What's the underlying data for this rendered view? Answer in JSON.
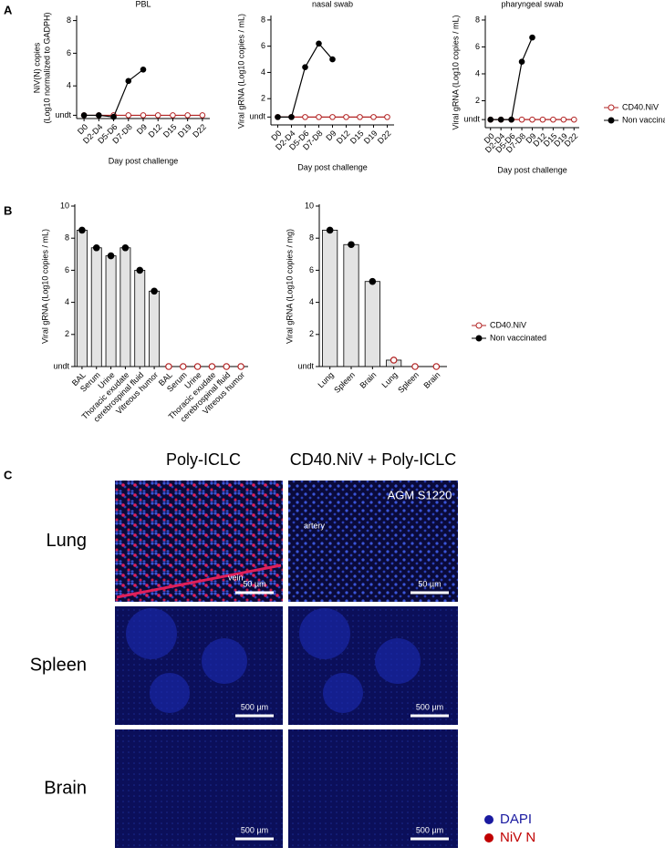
{
  "panel_labels": [
    "A",
    "B",
    "C"
  ],
  "chart_data": [
    {
      "type": "line",
      "title": "PBL",
      "y_label": [
        "NiV(N) copies",
        "(Log10 normalized to GADPH)"
      ],
      "x_label": "Day post challenge",
      "categories": [
        "D0",
        "D2-D4",
        "D5-D6",
        "D7-D8",
        "D9",
        "D12",
        "D15",
        "D19",
        "D22"
      ],
      "ylim": [
        2,
        8.2
      ],
      "yticks": [
        {
          "value": 2.2,
          "label": "undt"
        },
        4,
        6,
        8
      ],
      "series": [
        {
          "name": "CD40.NiV",
          "color": "#b22222",
          "marker": "open",
          "values": [
            2.2,
            2.2,
            2.2,
            2.2,
            2.2,
            2.2,
            2.2,
            2.2,
            2.2
          ]
        },
        {
          "name": "Non vaccinated",
          "color": "#000000",
          "marker": "filled",
          "values": [
            2.2,
            2.2,
            2.1,
            4.3,
            5.0,
            null,
            null,
            null,
            null
          ]
        }
      ]
    },
    {
      "type": "line",
      "title": "nasal swab",
      "y_label": [
        "Viral gRNA (Log10 copies / mL)"
      ],
      "x_label": "Day post challenge",
      "categories": [
        "D0",
        "D2-D4",
        "D5-D6",
        "D7-D8",
        "D9",
        "D12",
        "D15",
        "D19",
        "D22"
      ],
      "ylim": [
        0,
        8.2
      ],
      "yticks": [
        {
          "value": 0.6,
          "label": "undt"
        },
        2,
        4,
        6,
        8
      ],
      "series": [
        {
          "name": "CD40.NiV",
          "color": "#b22222",
          "marker": "open",
          "values": [
            0.6,
            0.6,
            0.6,
            0.6,
            0.6,
            0.6,
            0.6,
            0.6,
            0.6
          ]
        },
        {
          "name": "Non vaccinated",
          "color": "#000000",
          "marker": "filled",
          "values": [
            0.6,
            0.6,
            4.4,
            6.2,
            5.0,
            null,
            null,
            null,
            null
          ]
        }
      ]
    },
    {
      "type": "line",
      "title": "pharyngeal swab",
      "y_label": [
        "Viral gRNA (Log10 copies / mL)"
      ],
      "x_label": "Day post challenge",
      "categories": [
        "D0",
        "D2-D4",
        "D5-D6",
        "D7-D8",
        "D9",
        "D12",
        "D15",
        "D19",
        "D22"
      ],
      "ylim": [
        0,
        8.2
      ],
      "yticks": [
        {
          "value": 0.6,
          "label": "undt"
        },
        2,
        4,
        6,
        8
      ],
      "legend": "right",
      "series": [
        {
          "name": "CD40.NiV",
          "color": "#b22222",
          "marker": "open",
          "values": [
            0.6,
            0.6,
            0.6,
            0.6,
            0.6,
            0.6,
            0.6,
            0.6,
            0.6
          ]
        },
        {
          "name": "Non vaccinated",
          "color": "#000000",
          "marker": "filled",
          "values": [
            0.6,
            0.6,
            0.6,
            4.9,
            6.7,
            null,
            null,
            null,
            null
          ]
        }
      ]
    },
    {
      "type": "bar",
      "y_label": [
        "Viral gRNA (Log10 copies / mL)"
      ],
      "categories": [
        "BAL",
        "Serum",
        "Urine",
        "Thoracic exudate",
        "cerebrospinal fluid",
        "Vitreous humor",
        "BAL",
        "Serum",
        "Urine",
        "Thoracic exudate",
        "cerebrospinal fluid",
        "Vitreous humor"
      ],
      "ylim": [
        0,
        10
      ],
      "yticks": [
        {
          "value": 0,
          "label": "undt"
        },
        2,
        4,
        6,
        8,
        10
      ],
      "bar_color": "#e3e3e3",
      "series": [
        {
          "name": "Non vaccinated",
          "color": "#000000",
          "marker": "filled",
          "values": [
            8.5,
            7.4,
            6.9,
            7.4,
            6.0,
            4.7,
            null,
            null,
            null,
            null,
            null,
            null
          ]
        },
        {
          "name": "CD40.NiV",
          "color": "#b22222",
          "marker": "open",
          "values": [
            null,
            null,
            null,
            null,
            null,
            null,
            0,
            0,
            0,
            0,
            0,
            0
          ]
        }
      ]
    },
    {
      "type": "bar",
      "y_label": [
        "Viral gRNA (Log10 copies / mg)"
      ],
      "categories": [
        "Lung",
        "Spleen",
        "Brain",
        "Lung",
        "Spleen",
        "Brain"
      ],
      "ylim": [
        0,
        10
      ],
      "yticks": [
        {
          "value": 0,
          "label": "undt"
        },
        2,
        4,
        6,
        8,
        10
      ],
      "bar_color": "#e3e3e3",
      "legend": "right",
      "series": [
        {
          "name": "CD40.NiV",
          "color": "#b22222",
          "marker": "open",
          "values": [
            null,
            null,
            null,
            0.4,
            0,
            0
          ]
        },
        {
          "name": "Non vaccinated",
          "color": "#000000",
          "marker": "filled",
          "values": [
            8.5,
            7.6,
            5.3,
            null,
            null,
            null
          ]
        }
      ]
    }
  ],
  "panel_c": {
    "column_headers": [
      "Poly-ICLC",
      "CD40.NiV + Poly-ICLC"
    ],
    "row_labels": [
      "Lung",
      "Spleen",
      "Brain"
    ],
    "sample": "AGM S1220",
    "artery": "artery",
    "vein": "vein",
    "scale_bars": [
      "50 µm",
      "50 µm",
      "500 µm",
      "500 µm",
      "500 µm",
      "500 µm"
    ],
    "legend": [
      {
        "label": "DAPI",
        "color": "#1a1aa0"
      },
      {
        "label": "NiV N",
        "color": "#c00000"
      }
    ]
  }
}
